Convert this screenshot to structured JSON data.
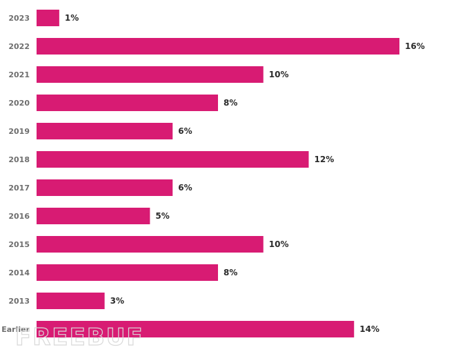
{
  "chart_data": {
    "type": "bar",
    "orientation": "horizontal",
    "categories": [
      "2023",
      "2022",
      "2021",
      "2020",
      "2019",
      "2018",
      "2017",
      "2016",
      "2015",
      "2014",
      "2013",
      "Earlier"
    ],
    "values": [
      1,
      16,
      10,
      8,
      6,
      12,
      6,
      5,
      10,
      8,
      3,
      14
    ],
    "value_labels": [
      "1%",
      "16%",
      "10%",
      "8%",
      "6%",
      "12%",
      "6%",
      "5%",
      "10%",
      "8%",
      "3%",
      "14%"
    ],
    "unit": "%",
    "xlim": [
      0,
      16
    ],
    "grid": false,
    "legend": "none",
    "bar_color": "#d81b73",
    "watermark": "FREEBUF"
  }
}
